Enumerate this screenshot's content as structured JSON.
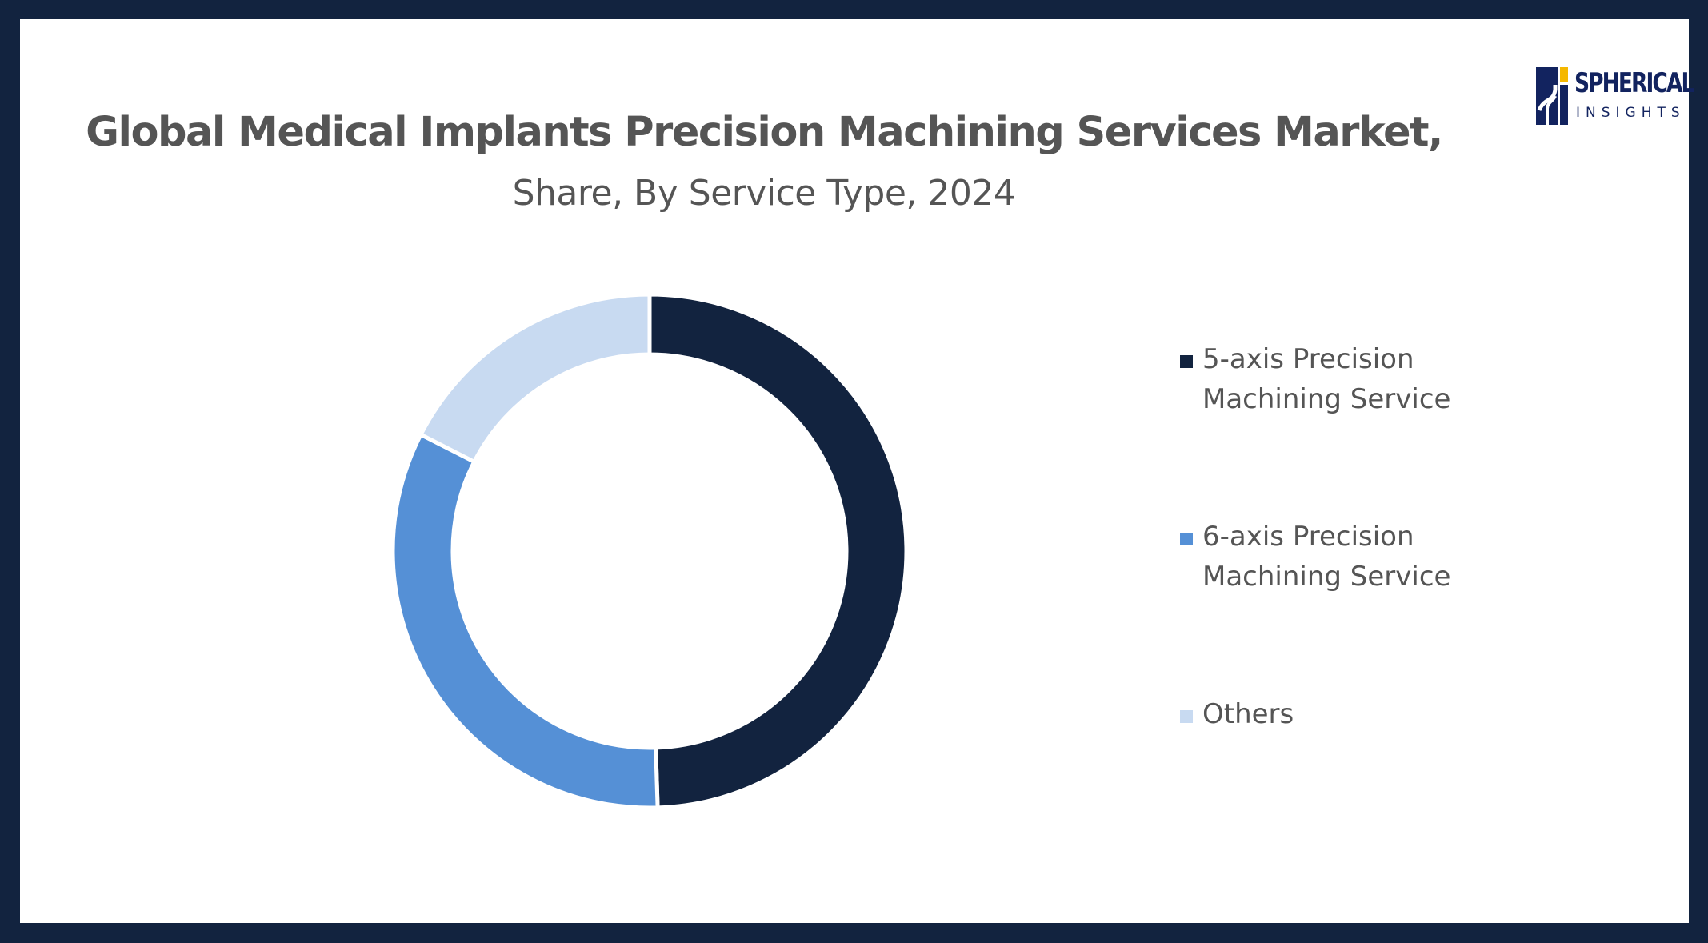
{
  "chart_data": {
    "type": "pie",
    "variant": "donut",
    "title": "Global Medical Implants Precision Machining Services Market,",
    "subtitle": "Share, By Service Type, 2024",
    "categories": [
      "5-axis Precision Machining Service",
      "6-axis Precision Machining Service",
      "Others"
    ],
    "values": [
      49.5,
      33.0,
      17.5
    ],
    "colors": [
      "#12233f",
      "#5590d6",
      "#c8daf1"
    ],
    "legend_position": "right"
  },
  "logo": {
    "name": "SPHERICAL",
    "sub": "INSIGHTS"
  },
  "colors": {
    "frame": "#12233f",
    "background": "#ffffff",
    "text": "#555555",
    "brand": "#12235f",
    "brand_accent": "#f5b800"
  }
}
